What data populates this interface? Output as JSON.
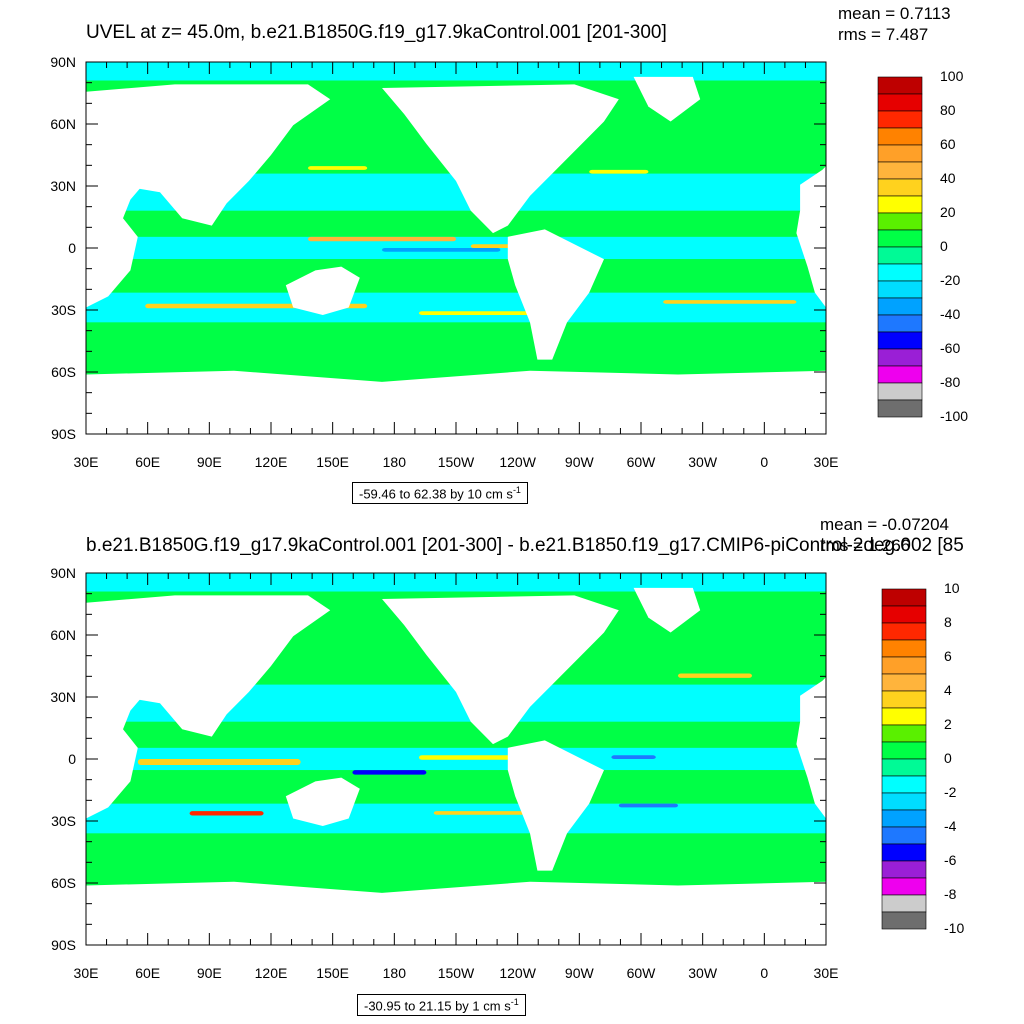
{
  "colors": {
    "map_palette": [
      "#6e6e6e",
      "#cccccc",
      "#ee00ee",
      "#9a1fd6",
      "#0000ff",
      "#1e78ff",
      "#00a2ff",
      "#00ddff",
      "#00ffff",
      "#00fa96",
      "#00ff46",
      "#5af000",
      "#ffff00",
      "#ffd21e",
      "#ffb43c",
      "#ffa028",
      "#ff8200",
      "#ff2800",
      "#e60000",
      "#be0000"
    ],
    "land": "#ffffff",
    "polar": "#00ffff"
  },
  "panels": [
    {
      "title": "UVEL at z=  45.0m, b.e21.B1850G.f19_g17.9kaControl.001 [201-300]",
      "mean_text": "mean = 0.7113",
      "rms_text": "rms = 7.487",
      "range_text": "-59.46 to 62.38 by 10 cm s",
      "range_exp": "-1",
      "x_ticks": [
        "30E",
        "60E",
        "90E",
        "120E",
        "150E",
        "180",
        "150W",
        "120W",
        "90W",
        "60W",
        "30W",
        "0",
        "30E"
      ],
      "y_ticks": [
        "90N",
        "60N",
        "30N",
        "0",
        "30S",
        "60S",
        "90S"
      ],
      "colorbar_labels": [
        "100",
        "80",
        "60",
        "40",
        "20",
        "0",
        "-20",
        "-40",
        "-60",
        "-80",
        "-100"
      ]
    },
    {
      "title": "b.e21.B1850G.f19_g17.9kaControl.001 [201-300] - b.e21.B1850.f19_g17.CMIP6-piControl-2deg.002 [85",
      "mean_text": "mean = -0.07204",
      "rms_text": "rms = 1.266",
      "range_text": "-30.95 to 21.15 by 1 cm s",
      "range_exp": "-1",
      "x_ticks": [
        "30E",
        "60E",
        "90E",
        "120E",
        "150E",
        "180",
        "150W",
        "120W",
        "90W",
        "60W",
        "30W",
        "0",
        "30E"
      ],
      "y_ticks": [
        "90N",
        "60N",
        "30N",
        "0",
        "30S",
        "60S",
        "90S"
      ],
      "colorbar_labels": [
        "10",
        "8",
        "6",
        "4",
        "2",
        "0",
        "-2",
        "-4",
        "-6",
        "-8",
        "-10"
      ]
    }
  ]
}
